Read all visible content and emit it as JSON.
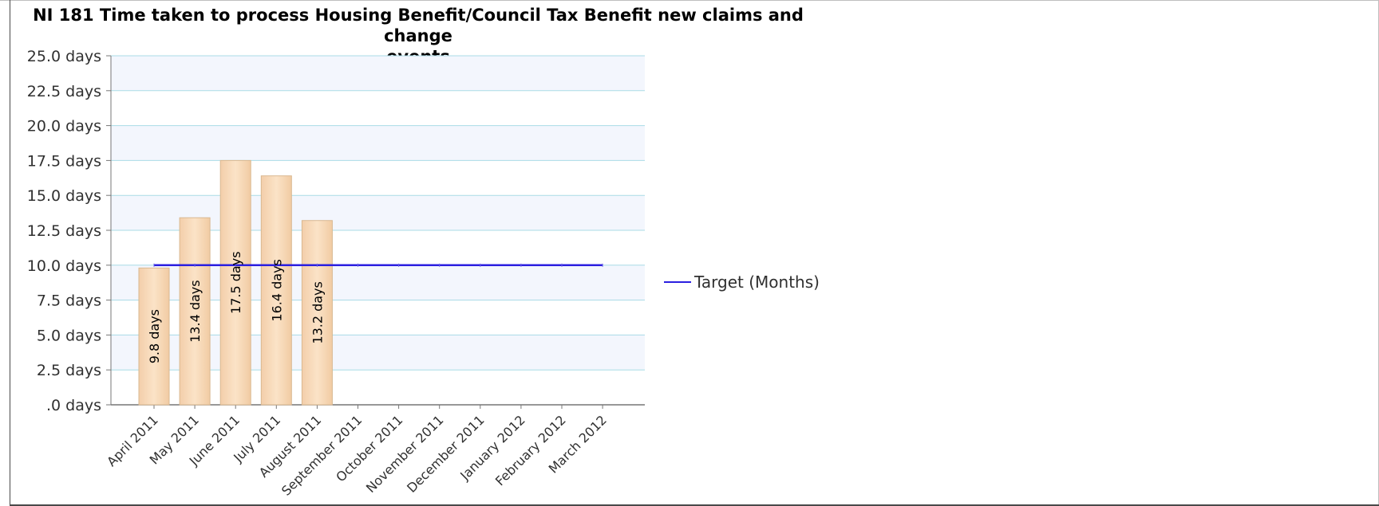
{
  "chart_data": {
    "type": "bar",
    "title_lines": [
      "NI 181 Time taken to process Housing Benefit/Council Tax Benefit new claims and change",
      "events"
    ],
    "categories": [
      "April 2011",
      "May 2011",
      "June 2011",
      "July 2011",
      "August 2011",
      "September 2011",
      "October 2011",
      "November 2011",
      "December 2011",
      "January 2012",
      "February 2012",
      "March 2012"
    ],
    "series": [
      {
        "type": "bar",
        "values": [
          9.8,
          13.4,
          17.5,
          16.4,
          13.2,
          null,
          null,
          null,
          null,
          null,
          null,
          null
        ],
        "data_labels": [
          "9.8 days",
          "13.4 days",
          "17.5 days",
          "16.4 days",
          "13.2 days"
        ],
        "color": "#f7d9b5"
      },
      {
        "name": "Target (Months)",
        "type": "line",
        "values": [
          10,
          10,
          10,
          10,
          10,
          10,
          10,
          10,
          10,
          10,
          10,
          10
        ],
        "color": "#2b1fe0"
      }
    ],
    "ylim": [
      0,
      25
    ],
    "yticks": [
      {
        "value": 25,
        "label": "25.0 days"
      },
      {
        "value": 22.5,
        "label": "22.5 days"
      },
      {
        "value": 20,
        "label": "20.0 days"
      },
      {
        "value": 17.5,
        "label": "17.5 days"
      },
      {
        "value": 15,
        "label": "15.0 days"
      },
      {
        "value": 12.5,
        "label": "12.5 days"
      },
      {
        "value": 10,
        "label": "10.0 days"
      },
      {
        "value": 7.5,
        "label": "7.5 days"
      },
      {
        "value": 5,
        "label": "5.0 days"
      },
      {
        "value": 2.5,
        "label": "2.5 days"
      },
      {
        "value": 0,
        "label": ".0 days"
      }
    ],
    "legend": {
      "placement": "right",
      "entries": [
        {
          "label": "Target (Months)",
          "color": "#2b1fe0"
        }
      ]
    },
    "grid": true,
    "colors": {
      "grid_line": "#a9dbe6",
      "band": "#f3f6fd",
      "axis": "#777777",
      "bar_border": "#d9b890"
    }
  }
}
